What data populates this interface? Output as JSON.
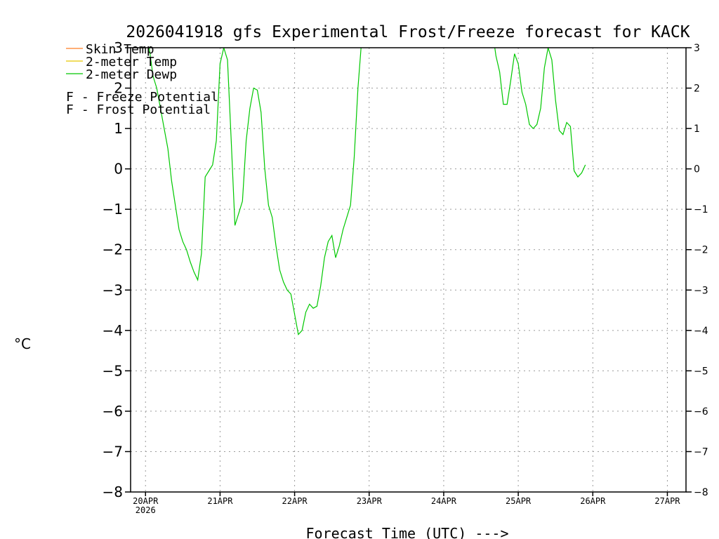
{
  "chart_data": {
    "type": "line",
    "title": "2026041918 gfs Experimental Frost/Freeze forecast for KACK",
    "xlabel": "Forecast Time (UTC) --->",
    "ylabel": "°C",
    "ylim": [
      -8,
      3
    ],
    "xlim": [
      -0.2,
      7.25
    ],
    "y_ticks": [
      3,
      2,
      1,
      0,
      -1,
      -2,
      -3,
      -4,
      -5,
      -6,
      -7,
      -8
    ],
    "y_tick_labels": [
      "3",
      "2",
      "1",
      "0",
      "−1",
      "−2",
      "−3",
      "−4",
      "−5",
      "−6",
      "−7",
      "−8"
    ],
    "x_ticks": [
      {
        "pos": 0,
        "label": "20APR",
        "sub": "2026"
      },
      {
        "pos": 1,
        "label": "21APR",
        "sub": ""
      },
      {
        "pos": 2,
        "label": "22APR",
        "sub": ""
      },
      {
        "pos": 3,
        "label": "23APR",
        "sub": ""
      },
      {
        "pos": 4,
        "label": "24APR",
        "sub": ""
      },
      {
        "pos": 5,
        "label": "25APR",
        "sub": ""
      },
      {
        "pos": 6,
        "label": "26APR",
        "sub": ""
      },
      {
        "pos": 7,
        "label": "27APR",
        "sub": ""
      }
    ],
    "grid": true,
    "legend": {
      "lines": [
        {
          "name": "Skin Temp",
          "color": "#ff7f24"
        },
        {
          "name": "2-meter Temp",
          "color": "#e8c800"
        },
        {
          "name": "2-meter Dewp",
          "color": "#00c800"
        }
      ],
      "markers": [
        {
          "letter": "F",
          "text": " - Freeze Potential",
          "color": "#c81ec8"
        },
        {
          "letter": "F",
          "text": " - Frost Potential",
          "color": "#3c50ff"
        }
      ]
    },
    "series": [
      {
        "name": "2-meter Dewp",
        "color": "#00c800",
        "segments": [
          [
            [
              0.0,
              3.2
            ],
            [
              0.05,
              3.0
            ],
            [
              0.1,
              2.3
            ],
            [
              0.15,
              2.0
            ],
            [
              0.2,
              1.5
            ],
            [
              0.25,
              1.0
            ],
            [
              0.3,
              0.5
            ],
            [
              0.35,
              -0.3
            ],
            [
              0.4,
              -0.9
            ],
            [
              0.45,
              -1.5
            ],
            [
              0.5,
              -1.8
            ],
            [
              0.55,
              -2.0
            ],
            [
              0.6,
              -2.3
            ],
            [
              0.65,
              -2.55
            ],
            [
              0.7,
              -2.75
            ],
            [
              0.75,
              -2.1
            ],
            [
              0.8,
              -0.2
            ],
            [
              0.85,
              -0.05
            ],
            [
              0.9,
              0.1
            ],
            [
              0.95,
              0.7
            ],
            [
              1.0,
              2.6
            ],
            [
              1.05,
              3.0
            ],
            [
              1.1,
              2.7
            ],
            [
              1.15,
              0.7
            ],
            [
              1.2,
              -1.4
            ],
            [
              1.25,
              -1.1
            ],
            [
              1.3,
              -0.8
            ],
            [
              1.35,
              0.7
            ],
            [
              1.4,
              1.5
            ],
            [
              1.45,
              2.0
            ],
            [
              1.5,
              1.95
            ],
            [
              1.55,
              1.4
            ],
            [
              1.6,
              0.0
            ],
            [
              1.65,
              -0.9
            ],
            [
              1.7,
              -1.2
            ],
            [
              1.75,
              -1.9
            ],
            [
              1.8,
              -2.5
            ],
            [
              1.85,
              -2.8
            ],
            [
              1.9,
              -3.0
            ],
            [
              1.95,
              -3.1
            ],
            [
              2.0,
              -3.6
            ],
            [
              2.05,
              -4.1
            ],
            [
              2.1,
              -4.0
            ],
            [
              2.15,
              -3.55
            ],
            [
              2.2,
              -3.35
            ],
            [
              2.25,
              -3.45
            ],
            [
              2.3,
              -3.4
            ],
            [
              2.35,
              -2.9
            ],
            [
              2.4,
              -2.2
            ],
            [
              2.45,
              -1.8
            ],
            [
              2.5,
              -1.65
            ],
            [
              2.55,
              -2.2
            ],
            [
              2.6,
              -1.9
            ],
            [
              2.65,
              -1.5
            ],
            [
              2.7,
              -1.2
            ],
            [
              2.75,
              -0.9
            ],
            [
              2.8,
              0.3
            ],
            [
              2.85,
              2.0
            ],
            [
              2.9,
              3.2
            ]
          ],
          [
            [
              4.67,
              3.2
            ],
            [
              4.7,
              2.8
            ],
            [
              4.75,
              2.4
            ],
            [
              4.8,
              1.6
            ],
            [
              4.85,
              1.6
            ],
            [
              4.9,
              2.2
            ],
            [
              4.95,
              2.85
            ],
            [
              5.0,
              2.6
            ],
            [
              5.05,
              1.9
            ],
            [
              5.1,
              1.6
            ],
            [
              5.15,
              1.1
            ],
            [
              5.2,
              1.0
            ],
            [
              5.25,
              1.1
            ],
            [
              5.3,
              1.5
            ],
            [
              5.35,
              2.5
            ],
            [
              5.4,
              3.0
            ],
            [
              5.45,
              2.7
            ],
            [
              5.5,
              1.7
            ],
            [
              5.55,
              0.95
            ],
            [
              5.6,
              0.85
            ],
            [
              5.65,
              1.15
            ],
            [
              5.7,
              1.05
            ],
            [
              5.75,
              -0.05
            ],
            [
              5.8,
              -0.2
            ],
            [
              5.85,
              -0.1
            ],
            [
              5.9,
              0.1
            ]
          ]
        ]
      }
    ]
  }
}
